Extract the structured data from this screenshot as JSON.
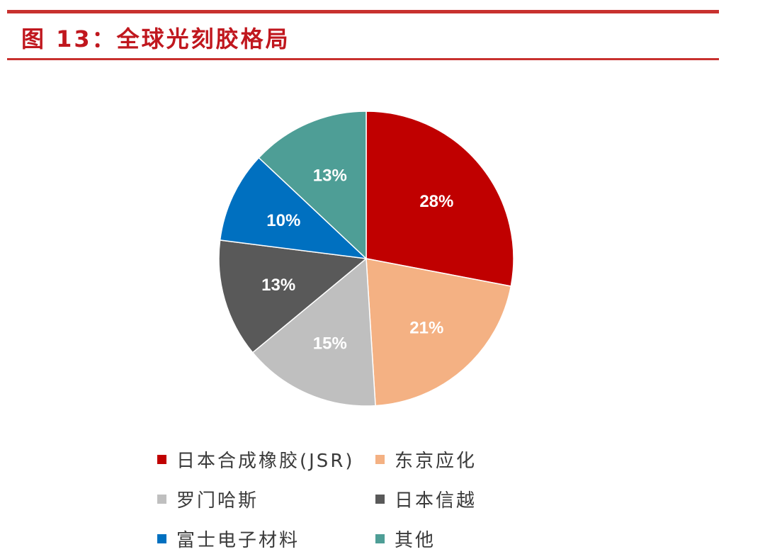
{
  "title": "图 13：全球光刻胶格局",
  "chart_data": {
    "type": "pie",
    "title": "图 13：全球光刻胶格局",
    "start": "top",
    "direction": "clockwise",
    "legend_position": "bottom",
    "slices": [
      {
        "label": "日本合成橡胶(JSR)",
        "value": 28,
        "display": "28%",
        "color": "#c00000"
      },
      {
        "label": "东京应化",
        "value": 21,
        "display": "21%",
        "color": "#f4b183"
      },
      {
        "label": "罗门哈斯",
        "value": 15,
        "display": "15%",
        "color": "#bfbfbf"
      },
      {
        "label": "日本信越",
        "value": 13,
        "display": "13%",
        "color": "#595959"
      },
      {
        "label": "富士电子材料",
        "value": 10,
        "display": "10%",
        "color": "#0070c0"
      },
      {
        "label": "其他",
        "value": 13,
        "display": "13%",
        "color": "#4e9e96"
      }
    ]
  }
}
